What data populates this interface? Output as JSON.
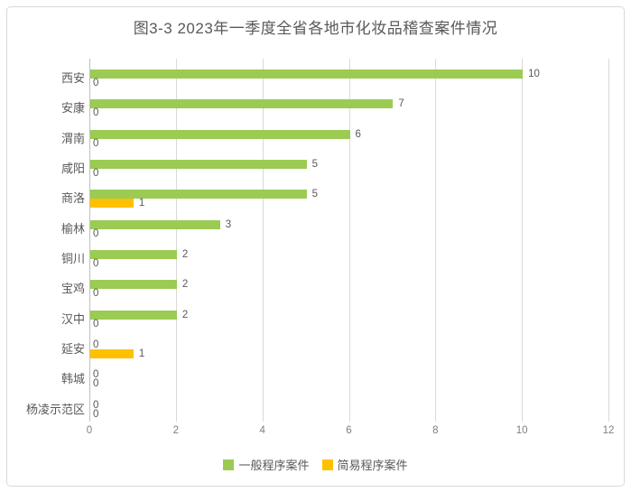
{
  "chart_data": {
    "type": "bar",
    "orientation": "horizontal",
    "title": "图3-3 2023年一季度全省各地市化妆品稽查案件情况",
    "categories": [
      "西安",
      "安康",
      "渭南",
      "咸阳",
      "商洛",
      "榆林",
      "铜川",
      "宝鸡",
      "汉中",
      "延安",
      "韩城",
      "杨凌示范区"
    ],
    "series": [
      {
        "name": "一般程序案件",
        "color": "#9bcb53",
        "values": [
          10,
          7,
          6,
          5,
          5,
          3,
          2,
          2,
          2,
          0,
          0,
          0
        ]
      },
      {
        "name": "简易程序案件",
        "color": "#ffc000",
        "values": [
          0,
          0,
          0,
          0,
          1,
          0,
          0,
          0,
          0,
          1,
          0,
          0
        ]
      }
    ],
    "xlim": [
      0,
      12
    ],
    "x_ticks": [
      0,
      2,
      4,
      6,
      8,
      10,
      12
    ],
    "grid": true,
    "data_labels": true,
    "legend_position": "bottom"
  },
  "colors": {
    "title_text": "#595959",
    "label_text": "#595959",
    "tick_text": "#7f7f7f",
    "gridline": "#d9d9d9",
    "axis_line": "#bfbfbf",
    "frame_border": "#d9d9d9",
    "background": "#ffffff"
  }
}
